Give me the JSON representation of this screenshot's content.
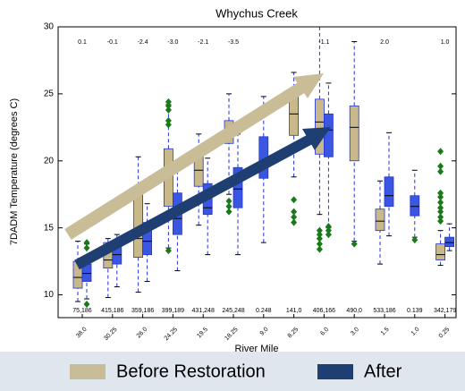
{
  "chart_data": {
    "type": "box",
    "title": "Whychus Creek",
    "xlabel": "River Mile",
    "ylabel": "7DADM Temperature (degrees C)",
    "categories": [
      "38.0",
      "30.25",
      "26.0",
      "24.25",
      "19.5",
      "18.25",
      "9.0",
      "8.25",
      "6.0",
      "3.0",
      "1.5",
      "1.0",
      "0.25"
    ],
    "annotations": [
      "0.1",
      "-0.1",
      "-2.4",
      "-3.0",
      "-2.1",
      "-3.5",
      null,
      null,
      "-1.1",
      null,
      "2.0",
      null,
      "1.0"
    ],
    "counts": [
      "75,186",
      "415,186",
      "359,186",
      "399,189",
      "431,248",
      "245,248",
      "0.248",
      "141,0",
      "406,166",
      "490,0",
      "533,186",
      "0.139",
      "342,179"
    ],
    "ylim": [
      8.3,
      30
    ],
    "yticks": [
      10,
      15,
      20,
      25,
      30
    ],
    "outlier_color": "#1a7a1a",
    "series": [
      {
        "name": "Before Restoration",
        "color": "#c9bd98",
        "box_color": "#c8b88a",
        "values": [
          {
            "low": 9.5,
            "q1": 10.5,
            "median": 11.3,
            "q3": 12.5,
            "high": 14.0,
            "outliers": []
          },
          {
            "low": 9.8,
            "q1": 12.0,
            "median": 12.6,
            "q3": 13.9,
            "high": 14.2,
            "outliers": []
          },
          {
            "low": 10.2,
            "q1": 12.8,
            "median": 14.2,
            "q3": 17.7,
            "high": 20.3,
            "outliers": []
          },
          {
            "low": 13.5,
            "q1": 16.6,
            "median": 19.3,
            "q3": 20.9,
            "high": 24.2,
            "outliers": [
              24.4,
              24.1,
              23.8,
              23.0,
              22.7,
              13.3
            ]
          },
          {
            "low": 15.2,
            "q1": 18.1,
            "median": 19.3,
            "q3": 20.4,
            "high": 22.0,
            "outliers": []
          },
          {
            "low": 17.5,
            "q1": 21.3,
            "median": 22.0,
            "q3": 23.0,
            "high": 25.0,
            "outliers": [
              16.2,
              16.6,
              17.0
            ]
          },
          null,
          {
            "low": 18.8,
            "q1": 21.9,
            "median": 23.5,
            "q3": 25.0,
            "high": 26.6,
            "outliers": [
              17.1,
              16.2,
              15.8,
              15.4
            ]
          },
          {
            "low": 16.0,
            "q1": 20.5,
            "median": 22.9,
            "q3": 24.6,
            "high": 30.0,
            "outliers": [
              14.8,
              14.5,
              14.2,
              13.8,
              13.4
            ]
          },
          {
            "low": 14.0,
            "q1": 20.0,
            "median": 22.5,
            "q3": 24.1,
            "high": 28.9,
            "outliers": [
              13.8
            ]
          },
          {
            "low": 12.3,
            "q1": 14.8,
            "median": 15.5,
            "q3": 16.4,
            "high": 18.5,
            "outliers": []
          },
          null,
          {
            "low": 12.2,
            "q1": 12.6,
            "median": 13.0,
            "q3": 13.8,
            "high": 14.8,
            "outliers": [
              20.7,
              19.6,
              19.2,
              17.6,
              17.3,
              16.9,
              16.5,
              16.2,
              15.8,
              15.5
            ]
          }
        ]
      },
      {
        "name": "After",
        "color": "#1f3f73",
        "box_color": "#3b56e0",
        "values": [
          {
            "low": 9.7,
            "q1": 11.0,
            "median": 11.6,
            "q3": 12.3,
            "high": 13.8,
            "outliers": [
              13.5,
              13.9,
              9.3
            ]
          },
          {
            "low": 10.6,
            "q1": 12.3,
            "median": 13.0,
            "q3": 13.8,
            "high": 14.5,
            "outliers": []
          },
          {
            "low": 11.0,
            "q1": 13.0,
            "median": 14.0,
            "q3": 15.4,
            "high": 16.8,
            "outliers": []
          },
          {
            "low": 11.8,
            "q1": 14.5,
            "median": 15.7,
            "q3": 17.6,
            "high": 20.0,
            "outliers": []
          },
          {
            "low": 13.0,
            "q1": 16.0,
            "median": 16.5,
            "q3": 18.3,
            "high": 20.2,
            "outliers": []
          },
          {
            "low": 13.0,
            "q1": 16.5,
            "median": 17.9,
            "q3": 19.5,
            "high": 22.0,
            "outliers": []
          },
          {
            "low": 13.9,
            "q1": 18.7,
            "median": 19.5,
            "q3": 21.8,
            "high": 24.8,
            "outliers": []
          },
          null,
          {
            "low": 15.0,
            "q1": 20.3,
            "median": 22.3,
            "q3": 23.5,
            "high": 25.8,
            "outliers": [
              15.1,
              14.8,
              14.5
            ]
          },
          null,
          {
            "low": 14.4,
            "q1": 16.6,
            "median": 17.4,
            "q3": 18.8,
            "high": 22.1,
            "outliers": []
          },
          {
            "low": 14.3,
            "q1": 15.9,
            "median": 16.6,
            "q3": 17.4,
            "high": 19.3,
            "outliers": [
              14.1
            ]
          },
          {
            "low": 13.3,
            "q1": 13.6,
            "median": 13.9,
            "q3": 14.3,
            "high": 15.3,
            "outliers": []
          }
        ]
      }
    ]
  }
}
